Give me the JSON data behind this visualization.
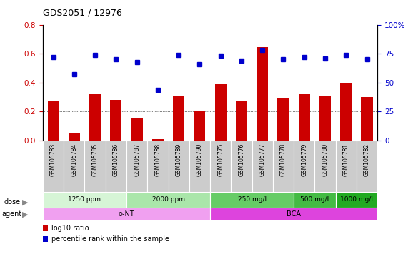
{
  "title": "GDS2051 / 12976",
  "samples": [
    "GSM105783",
    "GSM105784",
    "GSM105785",
    "GSM105786",
    "GSM105787",
    "GSM105788",
    "GSM105789",
    "GSM105790",
    "GSM105775",
    "GSM105776",
    "GSM105777",
    "GSM105778",
    "GSM105779",
    "GSM105780",
    "GSM105781",
    "GSM105782"
  ],
  "log10_ratio": [
    0.27,
    0.05,
    0.32,
    0.28,
    0.16,
    0.01,
    0.31,
    0.2,
    0.39,
    0.27,
    0.645,
    0.29,
    0.32,
    0.31,
    0.4,
    0.3
  ],
  "percentile_pct": [
    72,
    57,
    74,
    70,
    68,
    44,
    74,
    66,
    73,
    69,
    78,
    70,
    72,
    71,
    74,
    70
  ],
  "bar_color": "#cc0000",
  "dot_color": "#0000cc",
  "ylim_left": [
    0,
    0.8
  ],
  "ylim_right": [
    0,
    100
  ],
  "yticks_left": [
    0,
    0.2,
    0.4,
    0.6,
    0.8
  ],
  "yticks_right": [
    0,
    25,
    50,
    75,
    100
  ],
  "ytick_labels_right": [
    "0",
    "25",
    "50",
    "75",
    "100%"
  ],
  "dose_groups": [
    {
      "label": "1250 ppm",
      "start": 0,
      "end": 4,
      "color": "#d6f5d6"
    },
    {
      "label": "2000 ppm",
      "start": 4,
      "end": 8,
      "color": "#aae6aa"
    },
    {
      "label": "250 mg/l",
      "start": 8,
      "end": 12,
      "color": "#66cc66"
    },
    {
      "label": "500 mg/l",
      "start": 12,
      "end": 14,
      "color": "#44bb44"
    },
    {
      "label": "1000 mg/l",
      "start": 14,
      "end": 16,
      "color": "#22aa22"
    }
  ],
  "agent_groups": [
    {
      "label": "o-NT",
      "start": 0,
      "end": 8,
      "color": "#f0a0f0"
    },
    {
      "label": "BCA",
      "start": 8,
      "end": 16,
      "color": "#dd44dd"
    }
  ],
  "legend_items": [
    {
      "color": "#cc0000",
      "label": "log10 ratio"
    },
    {
      "color": "#0000cc",
      "label": "percentile rank within the sample"
    }
  ],
  "bg_color": "#ffffff",
  "label_color_left": "#cc0000",
  "label_color_right": "#0000cc"
}
